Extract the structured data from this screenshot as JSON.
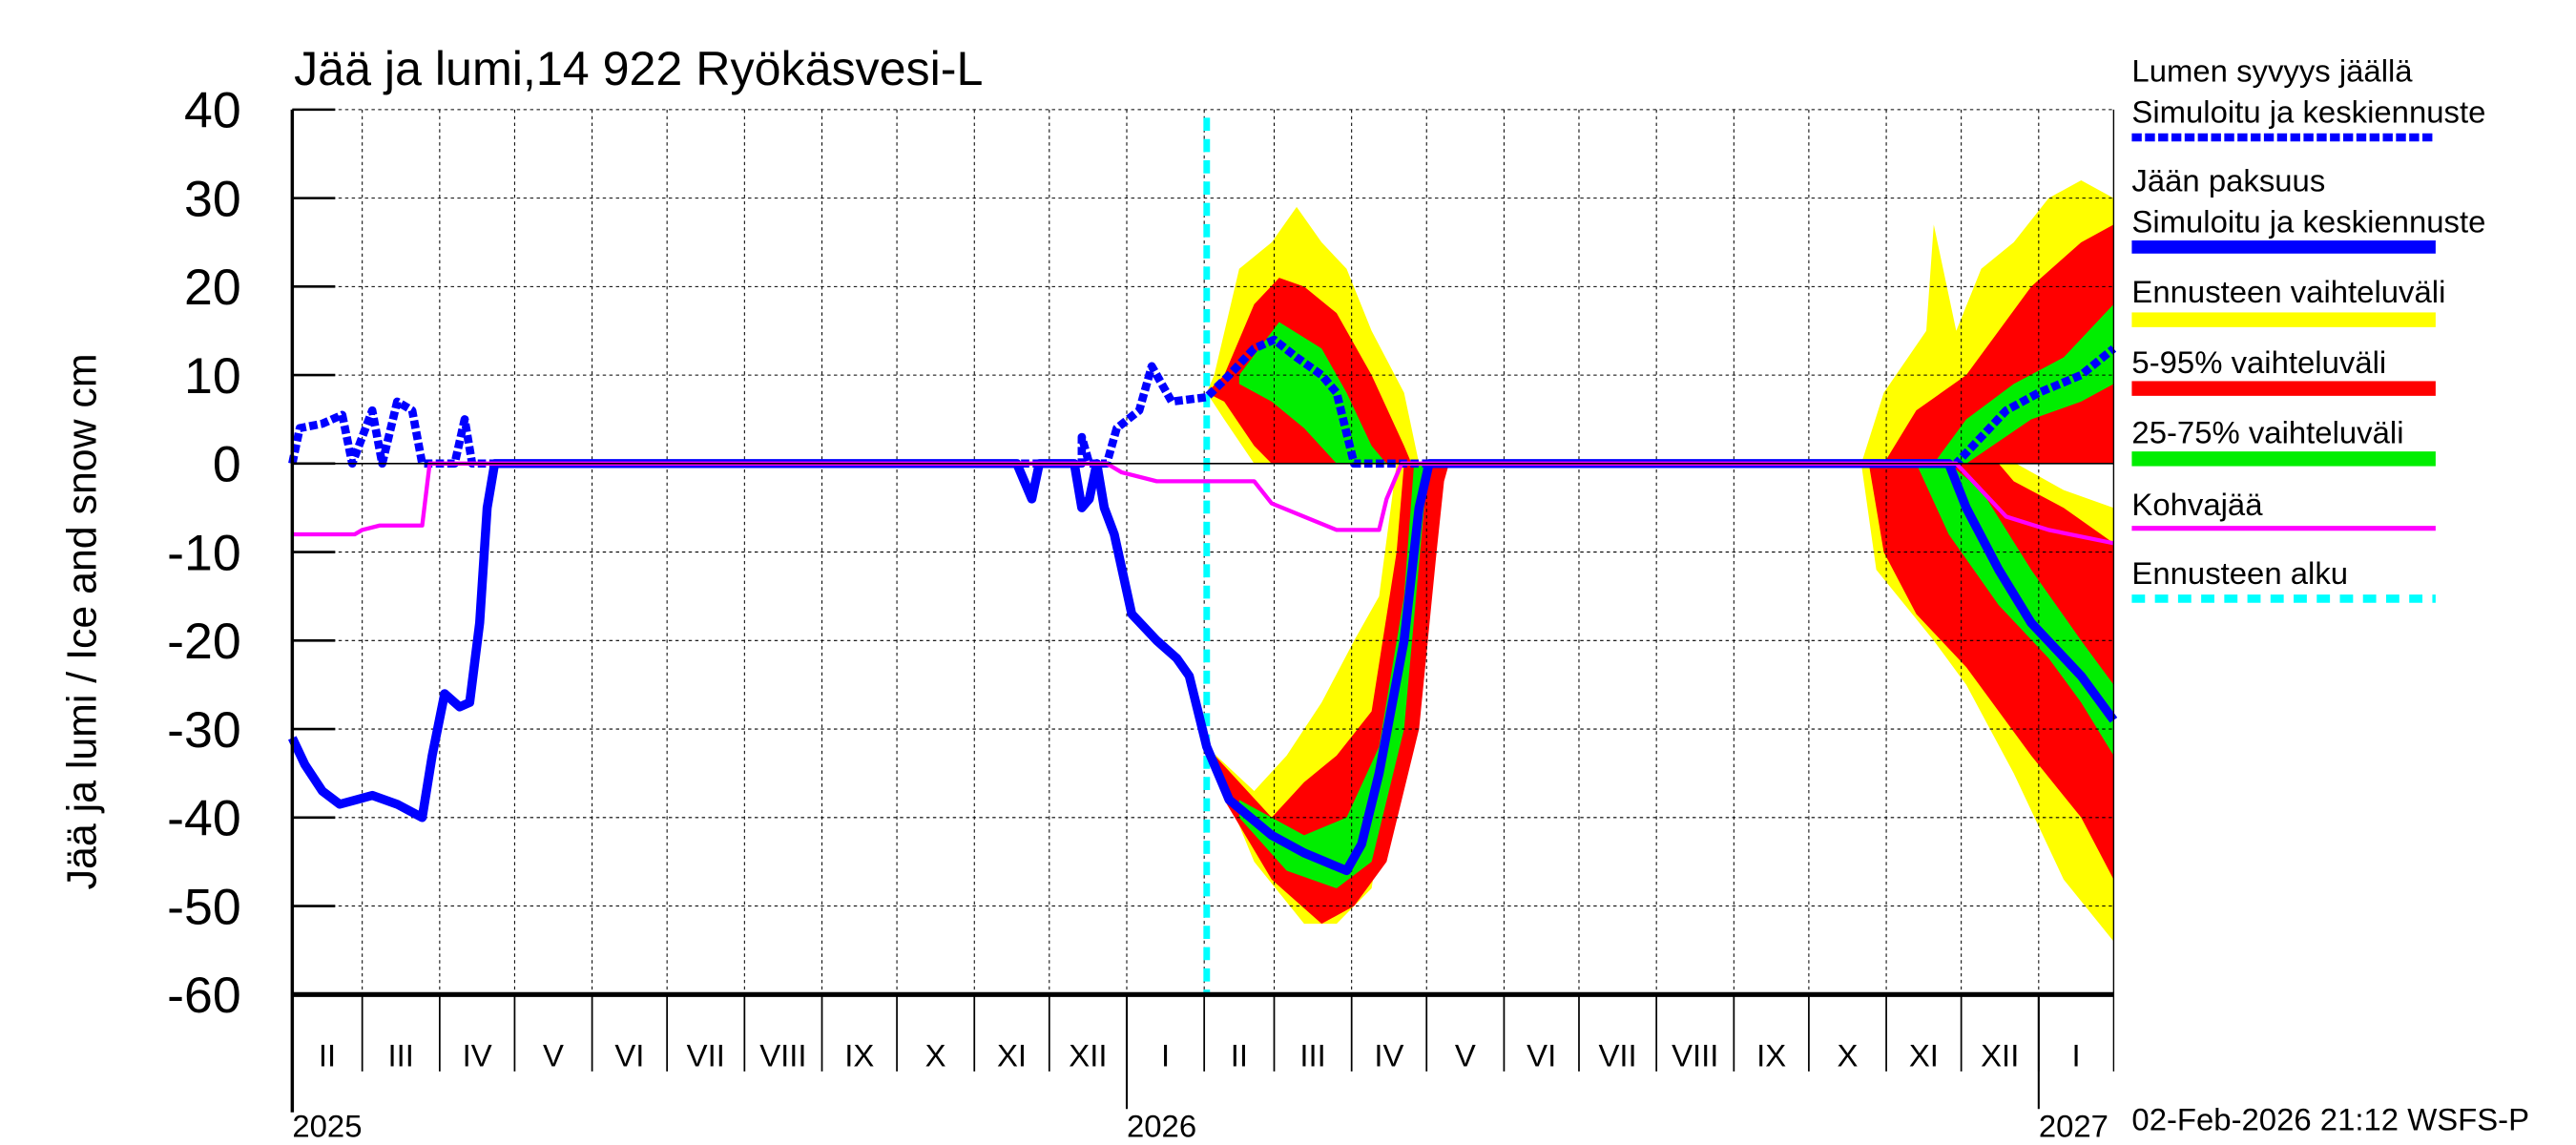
{
  "chart_data": {
    "type": "area",
    "title": "Jää ja lumi,14 922 Ryökäsvesi-L",
    "ylabel": "Jää ja lumi / Ice and snow    cm",
    "xlabel": "",
    "x_unit": "days since 2025-02-01",
    "xlim": [
      0,
      729
    ],
    "ylim": [
      -60,
      40
    ],
    "yticks": [
      40,
      30,
      20,
      10,
      0,
      -10,
      -20,
      -30,
      -40,
      -50,
      -60
    ],
    "grid": true,
    "legend_position": "right",
    "months": [
      {
        "label": "II",
        "start": 0
      },
      {
        "label": "III",
        "start": 28
      },
      {
        "label": "IV",
        "start": 59
      },
      {
        "label": "V",
        "start": 89
      },
      {
        "label": "VI",
        "start": 120
      },
      {
        "label": "VII",
        "start": 150
      },
      {
        "label": "VIII",
        "start": 181
      },
      {
        "label": "IX",
        "start": 212
      },
      {
        "label": "X",
        "start": 242
      },
      {
        "label": "XI",
        "start": 273
      },
      {
        "label": "XII",
        "start": 303
      },
      {
        "label": "I",
        "start": 334
      },
      {
        "label": "II",
        "start": 365
      },
      {
        "label": "III",
        "start": 393
      },
      {
        "label": "IV",
        "start": 424
      },
      {
        "label": "V",
        "start": 454
      },
      {
        "label": "VI",
        "start": 485
      },
      {
        "label": "VII",
        "start": 515
      },
      {
        "label": "VIII",
        "start": 546
      },
      {
        "label": "IX",
        "start": 577
      },
      {
        "label": "X",
        "start": 607
      },
      {
        "label": "XI",
        "start": 638
      },
      {
        "label": "XII",
        "start": 668
      },
      {
        "label": "I",
        "start": 699
      }
    ],
    "years": [
      {
        "label": "2025",
        "day": 0
      },
      {
        "label": "2026",
        "day": 334
      },
      {
        "label": "2027",
        "day": 699
      }
    ],
    "forecast_start_day": 366,
    "bands": [
      {
        "name": "yellow-snow-1",
        "color": "#ffff00",
        "upper": [
          [
            366,
            8
          ],
          [
            369,
            10
          ],
          [
            379,
            22
          ],
          [
            392,
            25
          ],
          [
            402,
            29
          ],
          [
            412,
            25
          ],
          [
            422,
            22
          ],
          [
            432,
            15
          ],
          [
            445,
            8
          ],
          [
            451,
            0
          ]
        ],
        "lower": [
          [
            366,
            8
          ],
          [
            373,
            5
          ],
          [
            385,
            0
          ],
          [
            451,
            0
          ]
        ]
      },
      {
        "name": "yellow-ice-1",
        "color": "#ffff00",
        "upper": [
          [
            366,
            -32
          ],
          [
            385,
            -37
          ],
          [
            398,
            -33
          ],
          [
            412,
            -27
          ],
          [
            425,
            -20
          ],
          [
            435,
            -15
          ],
          [
            442,
            0
          ],
          [
            455,
            0
          ]
        ],
        "lower": [
          [
            366,
            -32
          ],
          [
            385,
            -45
          ],
          [
            405,
            -52
          ],
          [
            418,
            -52
          ],
          [
            432,
            -48
          ],
          [
            442,
            -30
          ],
          [
            448,
            -10
          ],
          [
            455,
            0
          ]
        ]
      },
      {
        "name": "yellow-snow-2",
        "color": "#ffff00",
        "upper": [
          [
            628,
            0
          ],
          [
            637,
            8
          ],
          [
            654,
            15
          ],
          [
            657,
            27
          ],
          [
            666,
            15
          ],
          [
            676,
            22
          ],
          [
            689,
            25
          ],
          [
            703,
            30
          ],
          [
            716,
            32
          ],
          [
            729,
            30
          ]
        ],
        "lower": [
          [
            628,
            0
          ],
          [
            729,
            0
          ]
        ]
      },
      {
        "name": "yellow-ice-2",
        "color": "#ffff00",
        "upper": [
          [
            628,
            0
          ],
          [
            690,
            0
          ],
          [
            709,
            -3
          ],
          [
            729,
            -5
          ]
        ],
        "lower": [
          [
            628,
            0
          ],
          [
            634,
            -12
          ],
          [
            657,
            -20
          ],
          [
            670,
            -25
          ],
          [
            689,
            -35
          ],
          [
            709,
            -47
          ],
          [
            729,
            -54
          ]
        ]
      },
      {
        "name": "red-snow-1",
        "color": "#ff0000",
        "upper": [
          [
            366,
            8
          ],
          [
            373,
            10
          ],
          [
            385,
            18
          ],
          [
            395,
            21
          ],
          [
            405,
            20
          ],
          [
            418,
            17
          ],
          [
            432,
            10
          ],
          [
            445,
            2
          ],
          [
            448,
            0
          ]
        ],
        "lower": [
          [
            366,
            8
          ],
          [
            373,
            7
          ],
          [
            385,
            2
          ],
          [
            392,
            0
          ],
          [
            448,
            0
          ]
        ]
      },
      {
        "name": "red-ice-1",
        "color": "#ff0000",
        "upper": [
          [
            366,
            -32
          ],
          [
            392,
            -40
          ],
          [
            405,
            -36
          ],
          [
            418,
            -33
          ],
          [
            432,
            -28
          ],
          [
            442,
            -10
          ],
          [
            445,
            0
          ],
          [
            463,
            0
          ]
        ],
        "lower": [
          [
            366,
            -32
          ],
          [
            373,
            -38
          ],
          [
            392,
            -47
          ],
          [
            412,
            -52
          ],
          [
            425,
            -50
          ],
          [
            438,
            -45
          ],
          [
            451,
            -30
          ],
          [
            458,
            -10
          ],
          [
            461,
            -2
          ],
          [
            463,
            0
          ]
        ]
      },
      {
        "name": "red-snow-2",
        "color": "#ff0000",
        "upper": [
          [
            637,
            0
          ],
          [
            650,
            6
          ],
          [
            670,
            10
          ],
          [
            683,
            15
          ],
          [
            696,
            20
          ],
          [
            716,
            25
          ],
          [
            729,
            27
          ]
        ],
        "lower": [
          [
            637,
            0
          ],
          [
            729,
            0
          ]
        ]
      },
      {
        "name": "red-ice-2",
        "color": "#ff0000",
        "upper": [
          [
            631,
            0
          ],
          [
            683,
            0
          ],
          [
            689,
            -2
          ],
          [
            709,
            -5
          ],
          [
            729,
            -9
          ]
        ],
        "lower": [
          [
            631,
            0
          ],
          [
            637,
            -10
          ],
          [
            650,
            -17
          ],
          [
            670,
            -23
          ],
          [
            696,
            -33
          ],
          [
            716,
            -40
          ],
          [
            729,
            -47
          ]
        ]
      },
      {
        "name": "green-snow-1",
        "color": "#00ee00",
        "upper": [
          [
            379,
            10
          ],
          [
            395,
            16
          ],
          [
            412,
            13
          ],
          [
            422,
            8
          ],
          [
            432,
            2
          ],
          [
            438,
            0
          ]
        ],
        "lower": [
          [
            379,
            9
          ],
          [
            392,
            7
          ],
          [
            405,
            4
          ],
          [
            418,
            0
          ],
          [
            438,
            0
          ]
        ]
      },
      {
        "name": "green-ice-1",
        "color": "#00ee00",
        "upper": [
          [
            379,
            -38
          ],
          [
            405,
            -42
          ],
          [
            422,
            -40
          ],
          [
            435,
            -32
          ],
          [
            445,
            -15
          ],
          [
            449,
            0
          ],
          [
            455,
            0
          ]
        ],
        "lower": [
          [
            379,
            -40
          ],
          [
            398,
            -46
          ],
          [
            418,
            -48
          ],
          [
            432,
            -45
          ],
          [
            445,
            -30
          ],
          [
            453,
            -5
          ],
          [
            455,
            0
          ]
        ]
      },
      {
        "name": "green-snow-2",
        "color": "#00ee00",
        "upper": [
          [
            657,
            0
          ],
          [
            670,
            5
          ],
          [
            689,
            9
          ],
          [
            709,
            12
          ],
          [
            729,
            18
          ]
        ],
        "lower": [
          [
            657,
            0
          ],
          [
            670,
            0
          ],
          [
            696,
            5
          ],
          [
            716,
            7
          ],
          [
            729,
            9
          ]
        ]
      },
      {
        "name": "green-ice-2",
        "color": "#00ee00",
        "upper": [
          [
            650,
            0
          ],
          [
            663,
            0
          ],
          [
            676,
            -3
          ],
          [
            696,
            -12
          ],
          [
            716,
            -20
          ],
          [
            729,
            -25
          ]
        ],
        "lower": [
          [
            650,
            0
          ],
          [
            663,
            -8
          ],
          [
            683,
            -16
          ],
          [
            703,
            -22
          ],
          [
            716,
            -27
          ],
          [
            729,
            -33
          ]
        ]
      }
    ],
    "series": [
      {
        "name": "Kohvajää",
        "color": "#ff00ff",
        "style": "solid-thin",
        "points": [
          [
            0,
            -8
          ],
          [
            25,
            -8
          ],
          [
            28,
            -7.5
          ],
          [
            35,
            -7
          ],
          [
            52,
            -7
          ],
          [
            55,
            0
          ],
          [
            326,
            0
          ],
          [
            332,
            -1
          ],
          [
            346,
            -2
          ],
          [
            385,
            -2
          ],
          [
            392,
            -4.5
          ],
          [
            405,
            -6
          ],
          [
            418,
            -7.5
          ],
          [
            435,
            -7.5
          ],
          [
            438,
            -4
          ],
          [
            444,
            0
          ],
          [
            666,
            0
          ],
          [
            676,
            -3
          ],
          [
            686,
            -6
          ],
          [
            703,
            -7.5
          ],
          [
            729,
            -9
          ]
        ]
      },
      {
        "name": "Jään paksuus",
        "color": "#0000ff",
        "style": "solid-thick",
        "points": [
          [
            0,
            -31
          ],
          [
            5,
            -34
          ],
          [
            12,
            -37
          ],
          [
            19,
            -38.5
          ],
          [
            32,
            -37.5
          ],
          [
            42,
            -38.5
          ],
          [
            52,
            -40
          ],
          [
            56,
            -33
          ],
          [
            61,
            -26
          ],
          [
            67,
            -27.5
          ],
          [
            71,
            -27
          ],
          [
            75,
            -18
          ],
          [
            78,
            -5
          ],
          [
            81,
            0
          ],
          [
            290,
            0
          ],
          [
            293,
            -2
          ],
          [
            296,
            -4
          ],
          [
            299,
            0
          ],
          [
            313,
            0
          ],
          [
            316,
            -5
          ],
          [
            319,
            -4
          ],
          [
            322,
            0
          ],
          [
            325,
            -5
          ],
          [
            329,
            -8
          ],
          [
            336,
            -17
          ],
          [
            346,
            -20
          ],
          [
            354,
            -22
          ],
          [
            359,
            -24
          ],
          [
            366,
            -32
          ],
          [
            375,
            -38
          ],
          [
            392,
            -42
          ],
          [
            405,
            -44
          ],
          [
            422,
            -46
          ],
          [
            428,
            -43
          ],
          [
            435,
            -35
          ],
          [
            445,
            -20
          ],
          [
            451,
            -5
          ],
          [
            455,
            0
          ],
          [
            663,
            0
          ],
          [
            670,
            -5
          ],
          [
            683,
            -12
          ],
          [
            696,
            -18
          ],
          [
            716,
            -24
          ],
          [
            729,
            -29
          ]
        ]
      },
      {
        "name": "Lumen syvyys jäällä",
        "color": "#0000ff",
        "style": "dashed-thick",
        "points": [
          [
            0,
            0
          ],
          [
            3,
            4
          ],
          [
            12,
            4.5
          ],
          [
            20,
            5.5
          ],
          [
            24,
            0
          ],
          [
            28,
            3
          ],
          [
            32,
            6
          ],
          [
            36,
            0
          ],
          [
            42,
            7
          ],
          [
            48,
            6
          ],
          [
            52,
            0
          ],
          [
            65,
            0
          ],
          [
            69,
            5
          ],
          [
            72,
            0
          ],
          [
            316,
            0
          ],
          [
            316,
            3
          ],
          [
            319,
            0
          ],
          [
            326,
            0
          ],
          [
            330,
            4
          ],
          [
            339,
            6
          ],
          [
            344,
            11
          ],
          [
            352,
            7
          ],
          [
            366,
            7.5
          ],
          [
            375,
            10
          ],
          [
            385,
            13
          ],
          [
            393,
            14
          ],
          [
            402,
            12
          ],
          [
            412,
            10
          ],
          [
            418,
            8
          ],
          [
            425,
            0
          ],
          [
            442,
            0
          ],
          [
            666,
            0
          ],
          [
            676,
            3
          ],
          [
            686,
            6
          ],
          [
            699,
            8
          ],
          [
            716,
            10
          ],
          [
            729,
            13
          ]
        ]
      }
    ]
  },
  "legend": {
    "snow_title": "Lumen syvyys jäällä",
    "snow_sub": "Simuloitu ja keskiennuste",
    "ice_title": "Jään paksuus",
    "ice_sub": "Simuloitu ja keskiennuste",
    "range": "Ennusteen vaihteluväli",
    "p5_95": "5-95% vaihteluväli",
    "p25_75": "25-75% vaihteluväli",
    "kohva": "Kohvajää",
    "forecast_start": "Ennusteen alku"
  },
  "footer": "02-Feb-2026 21:12 WSFS-P",
  "colors": {
    "yellow": "#ffff00",
    "red": "#ff0000",
    "green": "#00ee00",
    "blue": "#0000ff",
    "magenta": "#ff00ff",
    "cyan": "#00ffff"
  }
}
